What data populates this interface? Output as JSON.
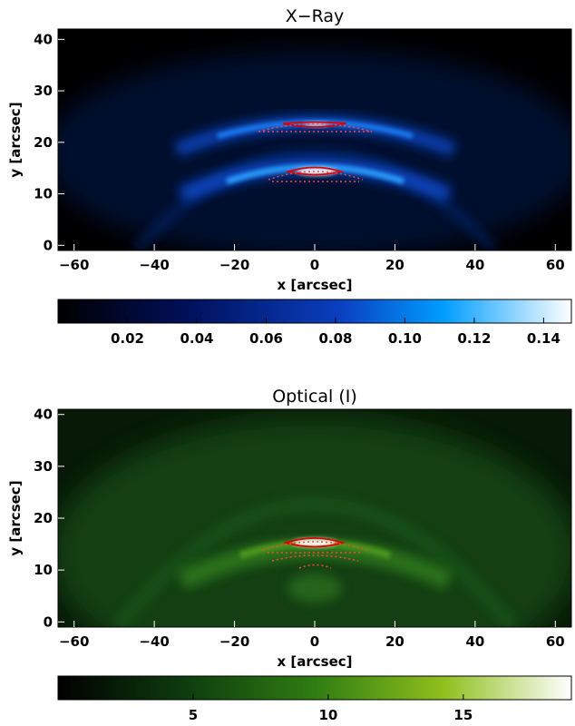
{
  "chart_data": [
    {
      "type": "heatmap",
      "title": "X−Ray",
      "xlabel": "x [arcsec]",
      "ylabel": "y [arcsec]",
      "xlim": [
        -64,
        64
      ],
      "ylim": [
        -1,
        42
      ],
      "xticks": [
        "−60",
        "−40",
        "−20",
        "0",
        "20",
        "40",
        "60"
      ],
      "yticks": [
        "0",
        "10",
        "20",
        "30",
        "40"
      ],
      "colorbar": {
        "range": [
          0.0,
          0.148
        ],
        "ticks": [
          "0.02",
          "0.04",
          "0.06",
          "0.08",
          "0.10",
          "0.12",
          "0.14"
        ],
        "colors": [
          "#000000",
          "#00105a",
          "#0a3fbf",
          "#009dff",
          "#ffffff"
        ]
      },
      "features": [
        {
          "shape": "arc",
          "y_at_center": 24,
          "peak_intensity": 0.12
        },
        {
          "shape": "arc",
          "y_at_center": 15,
          "peak_intensity": 0.14
        }
      ],
      "contours": {
        "solid_color": "#e00000",
        "dashed_color": "#ff4040"
      }
    },
    {
      "type": "heatmap",
      "title": "Optical (I)",
      "xlabel": "x [arcsec]",
      "ylabel": "y [arcsec]",
      "xlim": [
        -64,
        64
      ],
      "ylim": [
        -1,
        41
      ],
      "xticks": [
        "−60",
        "−40",
        "−20",
        "0",
        "20",
        "40",
        "60"
      ],
      "yticks": [
        "0",
        "10",
        "20",
        "30",
        "40"
      ],
      "colorbar": {
        "range": [
          0.0,
          19.0
        ],
        "ticks": [
          "5",
          "10",
          "15"
        ],
        "colors": [
          "#000000",
          "#0e3d0e",
          "#2f7d12",
          "#8fbf1c",
          "#ffffff"
        ]
      },
      "features": [
        {
          "shape": "arc",
          "y_at_center": 16,
          "peak_intensity": 18
        }
      ],
      "contours": {
        "solid_color": "#e00000",
        "dashed_color": "#ff4040"
      }
    }
  ]
}
